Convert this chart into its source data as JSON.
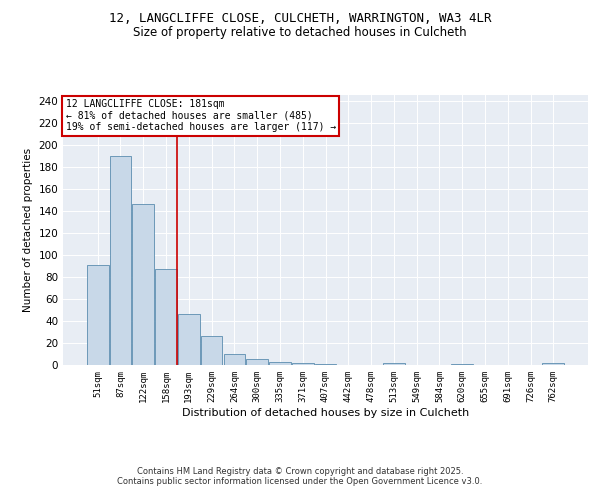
{
  "title1": "12, LANGCLIFFE CLOSE, CULCHETH, WARRINGTON, WA3 4LR",
  "title2": "Size of property relative to detached houses in Culcheth",
  "xlabel": "Distribution of detached houses by size in Culcheth",
  "ylabel": "Number of detached properties",
  "categories": [
    "51sqm",
    "87sqm",
    "122sqm",
    "158sqm",
    "193sqm",
    "229sqm",
    "264sqm",
    "300sqm",
    "335sqm",
    "371sqm",
    "407sqm",
    "442sqm",
    "478sqm",
    "513sqm",
    "549sqm",
    "584sqm",
    "620sqm",
    "655sqm",
    "691sqm",
    "726sqm",
    "762sqm"
  ],
  "values": [
    91,
    190,
    146,
    87,
    46,
    26,
    10,
    5,
    3,
    2,
    1,
    0,
    0,
    2,
    0,
    0,
    1,
    0,
    0,
    0,
    2
  ],
  "bar_color": "#c8d8e8",
  "bar_edge_color": "#5b8db0",
  "red_line_index": 4,
  "annotation_title": "12 LANGCLIFFE CLOSE: 181sqm",
  "annotation_line1": "← 81% of detached houses are smaller (485)",
  "annotation_line2": "19% of semi-detached houses are larger (117) →",
  "annotation_box_color": "#ffffff",
  "annotation_border_color": "#cc0000",
  "red_line_color": "#cc0000",
  "ylim": [
    0,
    245
  ],
  "yticks": [
    0,
    20,
    40,
    60,
    80,
    100,
    120,
    140,
    160,
    180,
    200,
    220,
    240
  ],
  "bg_color": "#e8edf4",
  "footer1": "Contains HM Land Registry data © Crown copyright and database right 2025.",
  "footer2": "Contains public sector information licensed under the Open Government Licence v3.0."
}
